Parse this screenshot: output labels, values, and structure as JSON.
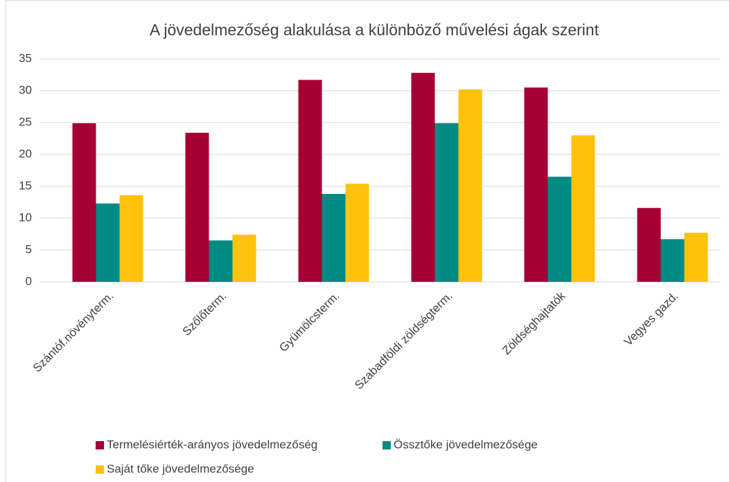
{
  "chart_data": {
    "type": "bar",
    "title": "A jövedelmezőség alakulása a különböző művelési ágak szerint",
    "categories": [
      "Szántóf.növényterm.",
      "Szőlőterm.",
      "Gyümölcsterm.",
      "Szabadföldi zöldségterm.",
      "Zöldséghajtatók",
      "Vegyes gazd."
    ],
    "series": [
      {
        "name": "Termelésiérték-arányos jövedelmezőség",
        "color": "#a50034",
        "values": [
          24.9,
          23.4,
          31.7,
          32.8,
          30.5,
          11.6
        ]
      },
      {
        "name": "Össztőke jövedelmezősége",
        "color": "#008b83",
        "values": [
          12.3,
          6.5,
          13.8,
          24.9,
          16.5,
          6.7
        ]
      },
      {
        "name": "Saját tőke jövedelmezősége",
        "color": "#ffc20e",
        "values": [
          13.6,
          7.4,
          15.4,
          30.2,
          23.0,
          7.7
        ]
      }
    ],
    "ylim": [
      0,
      35
    ],
    "yticks": [
      0,
      5,
      10,
      15,
      20,
      25,
      30,
      35
    ],
    "grid": true,
    "legend": "bottom"
  }
}
